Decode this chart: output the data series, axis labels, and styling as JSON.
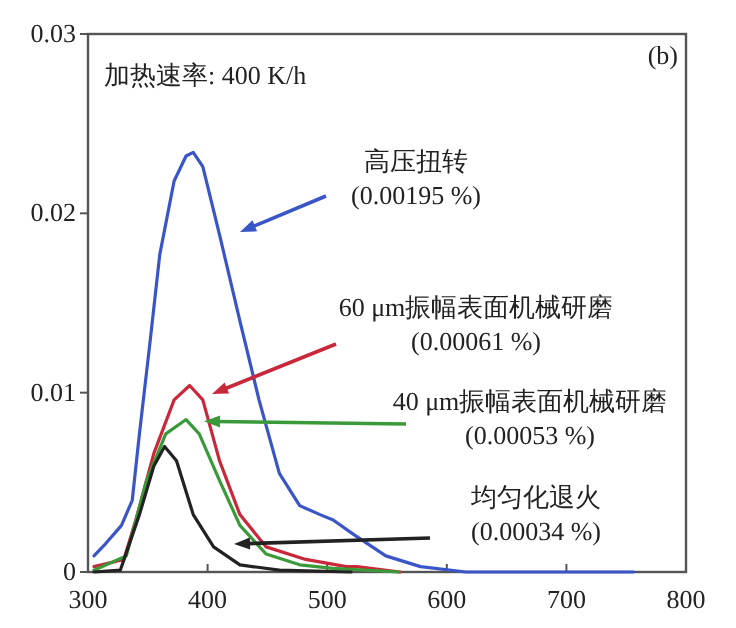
{
  "chart_data": {
    "type": "line",
    "xlim": [
      300,
      800
    ],
    "ylim": [
      0,
      0.03
    ],
    "xticks": [
      300,
      400,
      500,
      600,
      700,
      800
    ],
    "yticks": [
      0,
      0.01,
      0.02,
      0.03
    ],
    "grid": false,
    "line_style": "solid",
    "series": [
      {
        "color": "#3a55c8",
        "x": [
          305,
          315,
          328,
          337,
          343,
          352,
          360,
          372,
          382,
          388,
          396,
          410,
          427,
          443,
          460,
          477,
          494,
          505,
          522,
          549,
          578,
          616,
          756
        ],
        "values": [
          0.0009,
          0.0016,
          0.0026,
          0.004,
          0.0077,
          0.0129,
          0.0177,
          0.0218,
          0.0232,
          0.0234,
          0.0226,
          0.0188,
          0.014,
          0.0096,
          0.0055,
          0.0037,
          0.0032,
          0.0029,
          0.0021,
          0.0009,
          0.0003,
          0,
          0
        ]
      },
      {
        "color": "#c8283a",
        "x": [
          305,
          330,
          340,
          355,
          372,
          385,
          396,
          410,
          427,
          449,
          482,
          516,
          525,
          561
        ],
        "values": [
          0.0003,
          0.0007,
          0.0029,
          0.0066,
          0.0096,
          0.0104,
          0.0096,
          0.0062,
          0.0032,
          0.0014,
          0.0007,
          0.0003,
          0.0003,
          0
        ]
      },
      {
        "color": "#3a9a3a",
        "x": [
          305,
          332,
          349,
          365,
          382,
          393,
          410,
          427,
          449,
          477,
          505,
          560
        ],
        "values": [
          0.0001,
          0.0009,
          0.0051,
          0.0077,
          0.0085,
          0.0077,
          0.0051,
          0.0026,
          0.001,
          0.0004,
          0.0002,
          0
        ]
      },
      {
        "color": "#222222",
        "x": [
          305,
          327,
          343,
          355,
          364,
          374,
          388,
          405,
          427,
          460,
          520
        ],
        "values": [
          0,
          0.0001,
          0.0032,
          0.0059,
          0.007,
          0.0062,
          0.0032,
          0.0014,
          0.0004,
          0.0001,
          0
        ]
      }
    ],
    "annotations": [
      "加热速率: 400 K/h",
      "(b)",
      "高压扭转\n(0.00195 %)",
      "60 μm振幅表面机械研磨\n(0.00061 %)",
      {
        "text": "40 μm振幅表面机械研磨\n(0.00053 %)",
        "x": 397,
        "y": 0.0084
      },
      "均匀化退火\n(0.00034 %)"
    ]
  }
}
